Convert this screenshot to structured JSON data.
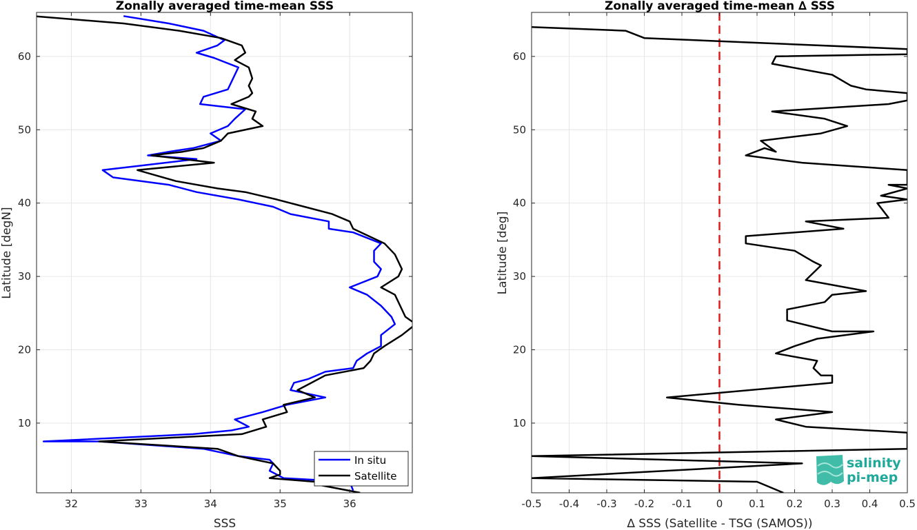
{
  "chart_data": [
    {
      "type": "line",
      "title": "Zonally averaged time-mean SSS",
      "xlabel": "SSS",
      "ylabel": "Latitude [degN]",
      "xlim": [
        31.5,
        36.9
      ],
      "ylim": [
        0.5,
        66
      ],
      "xticks": [
        "32",
        "33",
        "34",
        "35",
        "36"
      ],
      "yticks": [
        "10",
        "20",
        "30",
        "40",
        "50",
        "60"
      ],
      "grid": true,
      "legend_position": "bottom-right",
      "colors": {
        "in_situ": "#0000ff",
        "satellite": "#000000"
      },
      "series": [
        {
          "name": "In situ",
          "points": [
            [
              32.75,
              65.5
            ],
            [
              33.4,
              64.5
            ],
            [
              33.9,
              63.5
            ],
            [
              34.2,
              62.2
            ],
            [
              34.1,
              61.5
            ],
            [
              33.8,
              60.5
            ],
            [
              34.05,
              59.8
            ],
            [
              34.4,
              58.5
            ],
            [
              34.35,
              57.5
            ],
            [
              34.25,
              55.5
            ],
            [
              33.9,
              54.5
            ],
            [
              33.85,
              53.5
            ],
            [
              34.5,
              52.8
            ],
            [
              34.35,
              51.5
            ],
            [
              34.25,
              50.5
            ],
            [
              34.0,
              49.5
            ],
            [
              34.15,
              48.5
            ],
            [
              33.75,
              47.5
            ],
            [
              33.4,
              47.0
            ],
            [
              33.1,
              46.5
            ],
            [
              33.8,
              46.0
            ],
            [
              32.9,
              45.0
            ],
            [
              32.45,
              44.5
            ],
            [
              32.6,
              43.5
            ],
            [
              33.4,
              42.5
            ],
            [
              33.8,
              41.5
            ],
            [
              34.4,
              40.5
            ],
            [
              34.9,
              39.5
            ],
            [
              35.15,
              38.5
            ],
            [
              35.7,
              37.5
            ],
            [
              35.7,
              36.5
            ],
            [
              36.05,
              36.0
            ],
            [
              36.45,
              34.5
            ],
            [
              36.35,
              33.5
            ],
            [
              36.35,
              32.0
            ],
            [
              36.45,
              31.0
            ],
            [
              36.4,
              30.0
            ],
            [
              36.0,
              28.5
            ],
            [
              36.25,
              27.5
            ],
            [
              36.45,
              26.0
            ],
            [
              36.6,
              24.5
            ],
            [
              36.65,
              23.5
            ],
            [
              36.45,
              22.0
            ],
            [
              36.45,
              20.5
            ],
            [
              36.25,
              19.5
            ],
            [
              36.1,
              18.5
            ],
            [
              36.05,
              17.5
            ],
            [
              35.65,
              17.0
            ],
            [
              35.4,
              16.0
            ],
            [
              35.2,
              15.5
            ],
            [
              35.15,
              14.5
            ],
            [
              35.4,
              14.0
            ],
            [
              35.65,
              13.5
            ],
            [
              35.1,
              12.5
            ],
            [
              34.75,
              11.5
            ],
            [
              34.35,
              10.5
            ],
            [
              34.45,
              10.0
            ],
            [
              34.55,
              9.5
            ],
            [
              34.3,
              9.0
            ],
            [
              33.75,
              8.5
            ],
            [
              31.6,
              7.5
            ],
            [
              32.4,
              7.5
            ],
            [
              33.9,
              6.5
            ],
            [
              34.4,
              5.5
            ],
            [
              34.85,
              5.0
            ],
            [
              34.9,
              4.5
            ],
            [
              34.85,
              3.5
            ],
            [
              35.05,
              2.5
            ],
            [
              36.0,
              2.0
            ],
            [
              36.05,
              0.8
            ]
          ]
        },
        {
          "name": "Satellite",
          "points": [
            [
              31.45,
              65.5
            ],
            [
              32.75,
              64.5
            ],
            [
              33.55,
              63.5
            ],
            [
              34.15,
              62.5
            ],
            [
              34.45,
              61.5
            ],
            [
              34.5,
              60.5
            ],
            [
              34.35,
              59.5
            ],
            [
              34.55,
              58.5
            ],
            [
              34.6,
              57.0
            ],
            [
              34.55,
              56.0
            ],
            [
              34.6,
              55.0
            ],
            [
              34.55,
              54.5
            ],
            [
              34.3,
              53.5
            ],
            [
              34.65,
              52.5
            ],
            [
              34.6,
              51.5
            ],
            [
              34.75,
              50.5
            ],
            [
              34.25,
              49.5
            ],
            [
              34.15,
              48.5
            ],
            [
              33.9,
              47.5
            ],
            [
              33.6,
              47.0
            ],
            [
              33.15,
              46.5
            ],
            [
              34.05,
              45.5
            ],
            [
              32.95,
              44.5
            ],
            [
              33.5,
              43.0
            ],
            [
              34.1,
              42.0
            ],
            [
              34.5,
              41.5
            ],
            [
              34.95,
              40.5
            ],
            [
              35.35,
              39.5
            ],
            [
              35.75,
              38.5
            ],
            [
              36.0,
              37.5
            ],
            [
              36.05,
              36.5
            ],
            [
              36.5,
              34.5
            ],
            [
              36.65,
              33.0
            ],
            [
              36.75,
              31.0
            ],
            [
              36.7,
              30.0
            ],
            [
              36.45,
              28.5
            ],
            [
              36.65,
              27.5
            ],
            [
              36.75,
              25.5
            ],
            [
              36.8,
              24.5
            ],
            [
              36.95,
              23.5
            ],
            [
              36.75,
              22.0
            ],
            [
              36.5,
              20.5
            ],
            [
              36.35,
              19.5
            ],
            [
              36.3,
              18.5
            ],
            [
              36.2,
              17.5
            ],
            [
              35.65,
              16.5
            ],
            [
              35.45,
              15.5
            ],
            [
              35.25,
              14.5
            ],
            [
              35.5,
              13.5
            ],
            [
              35.05,
              12.5
            ],
            [
              35.1,
              11.5
            ],
            [
              34.75,
              10.5
            ],
            [
              34.8,
              9.5
            ],
            [
              34.45,
              8.5
            ],
            [
              32.4,
              7.5
            ],
            [
              34.1,
              6.5
            ],
            [
              34.4,
              5.5
            ],
            [
              34.9,
              4.5
            ],
            [
              35.0,
              3.5
            ],
            [
              35.0,
              3.0
            ],
            [
              34.85,
              2.5
            ],
            [
              35.5,
              2.0
            ],
            [
              35.6,
              1.5
            ],
            [
              36.15,
              0.5
            ]
          ]
        }
      ]
    },
    {
      "type": "line",
      "title": "Zonally averaged time-mean ∆ SSS",
      "xlabel": "∆ SSS (Satellite - TSG (SAMOS))",
      "ylabel": "Latitude [deg]",
      "xlim": [
        -0.5,
        0.5
      ],
      "ylim": [
        0.5,
        66
      ],
      "xticks": [
        "-0.5",
        "-0.4",
        "-0.3",
        "-0.2",
        "-0.1",
        "0",
        "0.1",
        "0.2",
        "0.3",
        "0.4",
        "0.5"
      ],
      "yticks": [
        "10",
        "20",
        "30",
        "40",
        "50",
        "60"
      ],
      "grid": true,
      "reference_line": {
        "x": 0,
        "color": "#e31a1c",
        "style": "dashed"
      },
      "series": [
        {
          "color": "#000000",
          "points": [
            [
              -0.5,
              64.0
            ],
            [
              -0.25,
              63.5
            ],
            [
              -0.2,
              62.5
            ],
            [
              0.5,
              61.0
            ],
            [
              0.5,
              60.3
            ],
            [
              0.15,
              60.0
            ],
            [
              0.14,
              59.0
            ],
            [
              0.3,
              57.5
            ],
            [
              0.35,
              56.0
            ],
            [
              0.39,
              55.5
            ],
            [
              0.5,
              55.0
            ],
            [
              0.5,
              54.0
            ],
            [
              0.45,
              53.5
            ],
            [
              0.14,
              52.5
            ],
            [
              0.28,
              51.5
            ],
            [
              0.34,
              50.5
            ],
            [
              0.27,
              49.5
            ],
            [
              0.11,
              48.5
            ],
            [
              0.15,
              47.0
            ],
            [
              0.12,
              47.5
            ],
            [
              0.07,
              46.5
            ],
            [
              0.22,
              45.5
            ],
            [
              0.36,
              45.0
            ],
            [
              0.5,
              44.5
            ],
            [
              0.5,
              42.5
            ],
            [
              0.45,
              42.5
            ],
            [
              0.5,
              42.0
            ],
            [
              0.43,
              41.0
            ],
            [
              0.5,
              40.5
            ],
            [
              0.42,
              40.0
            ],
            [
              0.45,
              38.0
            ],
            [
              0.23,
              37.5
            ],
            [
              0.33,
              36.5
            ],
            [
              0.07,
              35.5
            ],
            [
              0.07,
              34.5
            ],
            [
              0.2,
              33.5
            ],
            [
              0.25,
              32.0
            ],
            [
              0.27,
              31.5
            ],
            [
              0.23,
              29.5
            ],
            [
              0.39,
              28.0
            ],
            [
              0.3,
              27.5
            ],
            [
              0.28,
              26.5
            ],
            [
              0.18,
              25.5
            ],
            [
              0.18,
              24.0
            ],
            [
              0.3,
              22.5
            ],
            [
              0.41,
              22.5
            ],
            [
              0.26,
              21.5
            ],
            [
              0.2,
              20.5
            ],
            [
              0.15,
              19.5
            ],
            [
              0.26,
              18.5
            ],
            [
              0.25,
              17.5
            ],
            [
              0.27,
              16.5
            ],
            [
              0.3,
              16.5
            ],
            [
              0.3,
              15.5
            ],
            [
              -0.14,
              13.5
            ],
            [
              0.05,
              12.5
            ],
            [
              0.3,
              11.5
            ],
            [
              0.15,
              10.5
            ],
            [
              0.23,
              9.5
            ],
            [
              0.5,
              8.7
            ],
            [
              0.5,
              6.5
            ],
            [
              -0.5,
              5.5
            ],
            [
              0.22,
              4.5
            ],
            [
              -0.5,
              2.5
            ],
            [
              0.1,
              2.0
            ],
            [
              0.17,
              0.5
            ]
          ]
        }
      ]
    }
  ],
  "legend": {
    "items": [
      "In situ",
      "Satellite"
    ]
  },
  "logo": {
    "line1": "salinity",
    "line2": "pi-mep"
  }
}
